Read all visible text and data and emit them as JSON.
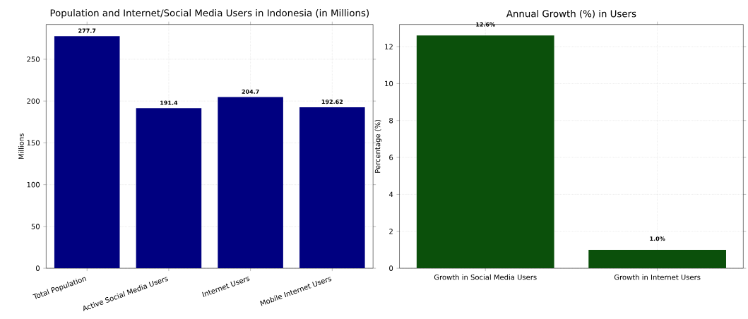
{
  "chart_data": [
    {
      "type": "bar",
      "title": "Population and Internet/Social Media Users in Indonesia (in Millions)",
      "ylabel": "Millions",
      "categories": [
        "Total Population",
        "Active Social Media Users",
        "Internet Users",
        "Mobile Internet Users"
      ],
      "values": [
        277.7,
        191.4,
        204.7,
        192.62
      ],
      "color": "#000080",
      "data_labels": true,
      "ylim": [
        0,
        291.6
      ],
      "yticks": [
        0,
        50,
        100,
        150,
        200,
        250
      ],
      "grid": true
    },
    {
      "type": "bar",
      "title": "Annual Growth (%) in Users",
      "ylabel": "Percentage (%)",
      "categories": [
        "Growth in Social Media Users",
        "Growth in Internet Users"
      ],
      "values": [
        12.6,
        1.0
      ],
      "value_labels": [
        "12.6%",
        "1.0%"
      ],
      "color": "#0b500b",
      "ylim": [
        0,
        13.2
      ],
      "yticks": [
        0,
        2,
        4,
        6,
        8,
        10,
        12
      ],
      "grid": true
    }
  ]
}
